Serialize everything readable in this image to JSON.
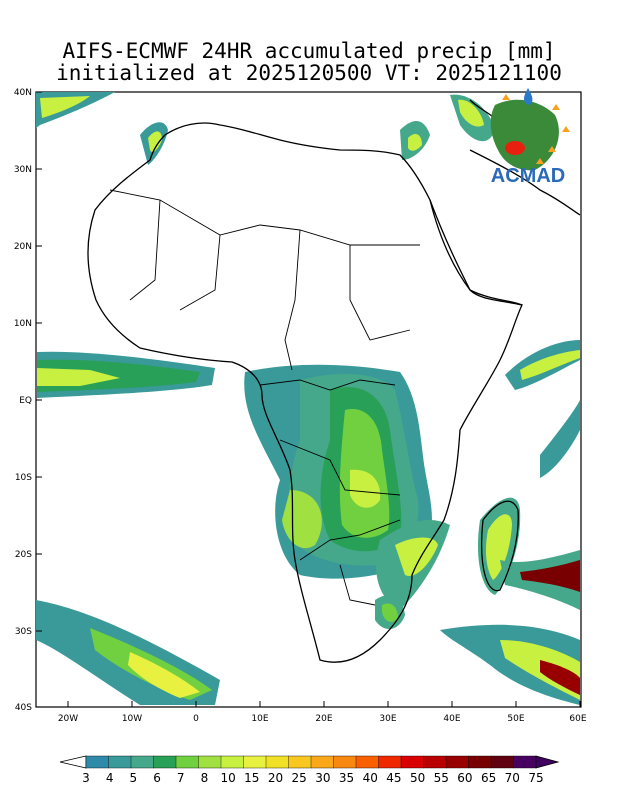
{
  "title_line1": "AIFS-ECMWF 24HR accumulated precip [mm]",
  "title_line2": "initialized at 2025120500 VT: 2025121100",
  "logo_text": "ACMAD",
  "lat_labels": [
    "40N",
    "30N",
    "20N",
    "10N",
    "EQ",
    "10S",
    "20S",
    "30S",
    "40S"
  ],
  "lon_labels": [
    "20W",
    "10W",
    "0",
    "10E",
    "20E",
    "30E",
    "40E",
    "50E",
    "60E"
  ],
  "colorbar": {
    "levels": [
      "3",
      "4",
      "5",
      "6",
      "7",
      "8",
      "10",
      "15",
      "20",
      "25",
      "30",
      "35",
      "40",
      "45",
      "50",
      "55",
      "60",
      "65",
      "70",
      "75"
    ],
    "colors": [
      "#2f8aaa",
      "#3a9a9a",
      "#46a88a",
      "#28a058",
      "#70d040",
      "#a0e040",
      "#c8f040",
      "#e8f040",
      "#f0e028",
      "#f8c820",
      "#f8a818",
      "#f88810",
      "#f86000",
      "#f02800",
      "#d80000",
      "#b80000",
      "#980000",
      "#780000",
      "#600010",
      "#480060"
    ],
    "under_color": "#ffffff",
    "over_color": "#400060"
  }
}
